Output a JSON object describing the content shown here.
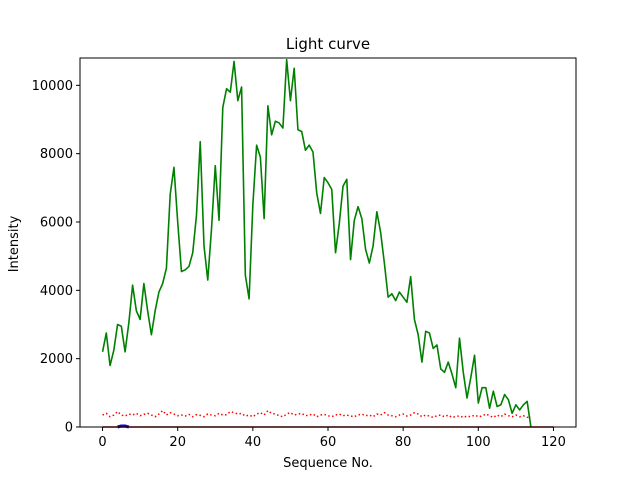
{
  "chart_data": {
    "type": "line",
    "title": "Light curve",
    "xlabel": "Sequence No.",
    "ylabel": "Intensity",
    "xlim": [
      -6,
      126
    ],
    "ylim": [
      0,
      10800
    ],
    "xticks": [
      0,
      20,
      40,
      60,
      80,
      100,
      120
    ],
    "yticks": [
      0,
      2000,
      4000,
      6000,
      8000,
      10000
    ],
    "grid": false,
    "series": [
      {
        "style": "solid",
        "color": "#008000",
        "x": [
          0,
          1,
          2,
          3,
          4,
          5,
          6,
          7,
          8,
          9,
          10,
          11,
          12,
          13,
          14,
          15,
          16,
          17,
          18,
          19,
          20,
          21,
          22,
          23,
          24,
          25,
          26,
          27,
          28,
          29,
          30,
          31,
          32,
          33,
          34,
          35,
          36,
          37,
          38,
          39,
          40,
          41,
          42,
          43,
          44,
          45,
          46,
          47,
          48,
          49,
          50,
          51,
          52,
          53,
          54,
          55,
          56,
          57,
          58,
          59,
          60,
          61,
          62,
          63,
          64,
          65,
          66,
          67,
          68,
          69,
          70,
          71,
          72,
          73,
          74,
          75,
          76,
          77,
          78,
          79,
          80,
          81,
          82,
          83,
          84,
          85,
          86,
          87,
          88,
          89,
          90,
          91,
          92,
          93,
          94,
          95,
          96,
          97,
          98,
          99,
          100,
          101,
          102,
          103,
          104,
          105,
          106,
          107,
          108,
          109,
          110,
          111,
          112,
          113,
          114
        ],
        "y": [
          2200,
          2750,
          1800,
          2250,
          3000,
          2950,
          2200,
          3050,
          4150,
          3400,
          3150,
          4200,
          3400,
          2700,
          3400,
          3950,
          4200,
          4650,
          6800,
          7600,
          6000,
          4550,
          4600,
          4700,
          5100,
          6200,
          8350,
          5300,
          4300,
          5800,
          7650,
          6050,
          9350,
          9900,
          9800,
          10700,
          9550,
          9950,
          4450,
          3750,
          6500,
          8250,
          7900,
          6100,
          9400,
          8550,
          8950,
          8900,
          8750,
          10750,
          9550,
          10500,
          8700,
          8650,
          8100,
          8250,
          8050,
          6850,
          6250,
          7300,
          7150,
          6950,
          5100,
          5950,
          7050,
          7250,
          4900,
          6050,
          6450,
          6100,
          5200,
          4800,
          5300,
          6300,
          5700,
          4800,
          3800,
          3900,
          3700,
          3950,
          3800,
          3650,
          4400,
          3150,
          2700,
          1900,
          2800,
          2750,
          2300,
          2400,
          1700,
          1600,
          1900,
          1550,
          1150,
          2600,
          1600,
          850,
          1450,
          2100,
          700,
          1150,
          1150,
          550,
          1050,
          600,
          650,
          950,
          800,
          400,
          650,
          500,
          650,
          750,
          0
        ]
      },
      {
        "style": "dotted",
        "color": "#ff0000",
        "x": [
          0,
          1,
          2,
          3,
          4,
          5,
          6,
          7,
          8,
          9,
          10,
          11,
          12,
          13,
          14,
          15,
          16,
          17,
          18,
          19,
          20,
          21,
          22,
          23,
          24,
          25,
          26,
          27,
          28,
          29,
          30,
          31,
          32,
          33,
          34,
          35,
          36,
          37,
          38,
          39,
          40,
          41,
          42,
          43,
          44,
          45,
          46,
          47,
          48,
          49,
          50,
          51,
          52,
          53,
          54,
          55,
          56,
          57,
          58,
          59,
          60,
          61,
          62,
          63,
          64,
          65,
          66,
          67,
          68,
          69,
          70,
          71,
          72,
          73,
          74,
          75,
          76,
          77,
          78,
          79,
          80,
          81,
          82,
          83,
          84,
          85,
          86,
          87,
          88,
          89,
          90,
          91,
          92,
          93,
          94,
          95,
          96,
          97,
          98,
          99,
          100,
          101,
          102,
          103,
          104,
          105,
          106,
          107,
          108,
          109,
          110,
          111,
          112,
          113,
          114
        ],
        "y": [
          350,
          400,
          300,
          350,
          450,
          350,
          320,
          380,
          350,
          400,
          330,
          370,
          400,
          350,
          300,
          380,
          480,
          350,
          420,
          380,
          330,
          350,
          320,
          370,
          300,
          360,
          340,
          300,
          380,
          350,
          330,
          400,
          350,
          360,
          450,
          420,
          380,
          400,
          320,
          350,
          300,
          380,
          420,
          350,
          480,
          400,
          380,
          330,
          300,
          380,
          420,
          350,
          380,
          400,
          330,
          350,
          380,
          300,
          350,
          370,
          330,
          300,
          350,
          380,
          330,
          350,
          320,
          300,
          350,
          380,
          330,
          350,
          300,
          380,
          350,
          420,
          350,
          330,
          300,
          350,
          380,
          320,
          350,
          420,
          380,
          300,
          350,
          320,
          280,
          330,
          350,
          300,
          350,
          280,
          300,
          330,
          280,
          320,
          300,
          350,
          300,
          320,
          380,
          330,
          280,
          350,
          300,
          380,
          330,
          300,
          350,
          300,
          330,
          280,
          300
        ]
      },
      {
        "style": "solid",
        "color": "#0000ff",
        "x": [
          4,
          5,
          6,
          7
        ],
        "y": [
          0,
          30,
          30,
          0
        ]
      },
      {
        "style": "solid",
        "color": "#8b0000",
        "x": [
          0,
          120
        ],
        "y": [
          0,
          0
        ]
      }
    ]
  }
}
